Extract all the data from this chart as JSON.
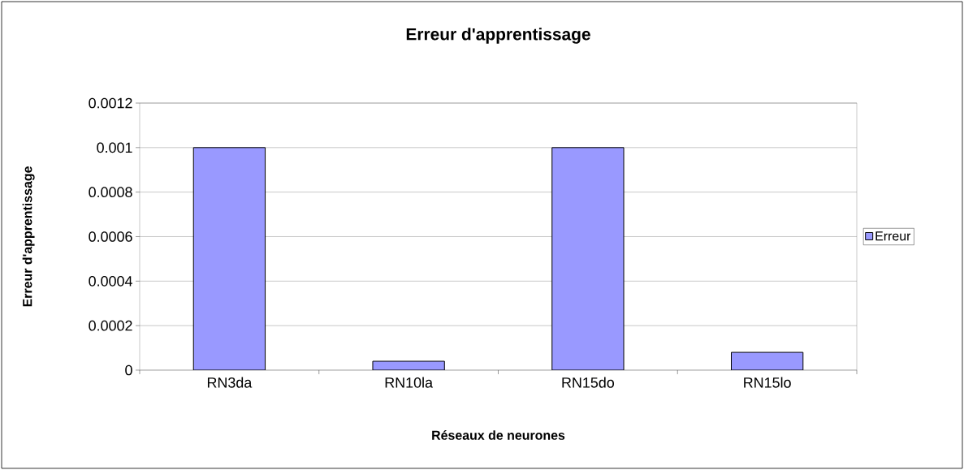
{
  "chart_data": {
    "type": "bar",
    "title": "Erreur d'apprentissage",
    "xlabel": "Réseaux de neurones",
    "ylabel": "Erreur d'apprentissage",
    "categories": [
      "RN3da",
      "RN10la",
      "RN15do",
      "RN15lo"
    ],
    "series": [
      {
        "name": "Erreur",
        "color": "#9999ff",
        "values": [
          0.001,
          4e-05,
          0.001,
          8e-05
        ]
      }
    ],
    "ylim": [
      0,
      0.0012
    ],
    "yticks": [
      0,
      0.0002,
      0.0004,
      0.0006,
      0.0008,
      0.001,
      0.0012
    ],
    "grid": "y",
    "legend": "right"
  }
}
